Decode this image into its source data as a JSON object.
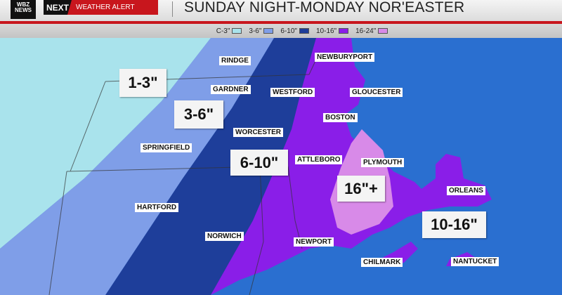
{
  "header": {
    "logo": "WBZ NEWS",
    "alert_brand": "NEXT",
    "alert_text": "WEATHER ALERT",
    "title": "SUNDAY NIGHT-MONDAY NOR'EASTER"
  },
  "legend": [
    {
      "label": "C-3\"",
      "color": "#a9e3ec"
    },
    {
      "label": "3-6\"",
      "color": "#7f9ee8"
    },
    {
      "label": "6-10\"",
      "color": "#1e3e9a"
    },
    {
      "label": "10-16\"",
      "color": "#8a1ee8"
    },
    {
      "label": "16-24\"",
      "color": "#d88ae8"
    }
  ],
  "colors": {
    "ocean": "#2a6fd0"
  },
  "towns": [
    "RINDGE",
    "GARDNER",
    "WESTFORD",
    "NEWBURYPORT",
    "GLOUCESTER",
    "BOSTON",
    "WORCESTER",
    "SPRINGFIELD",
    "ATTLEBORO",
    "PLYMOUTH",
    "ORLEANS",
    "HARTFORD",
    "NORWICH",
    "NEWPORT",
    "CHILMARK",
    "NANTUCKET"
  ],
  "amounts": [
    "1-3\"",
    "3-6\"",
    "6-10\"",
    "16\"+",
    "10-16\""
  ]
}
